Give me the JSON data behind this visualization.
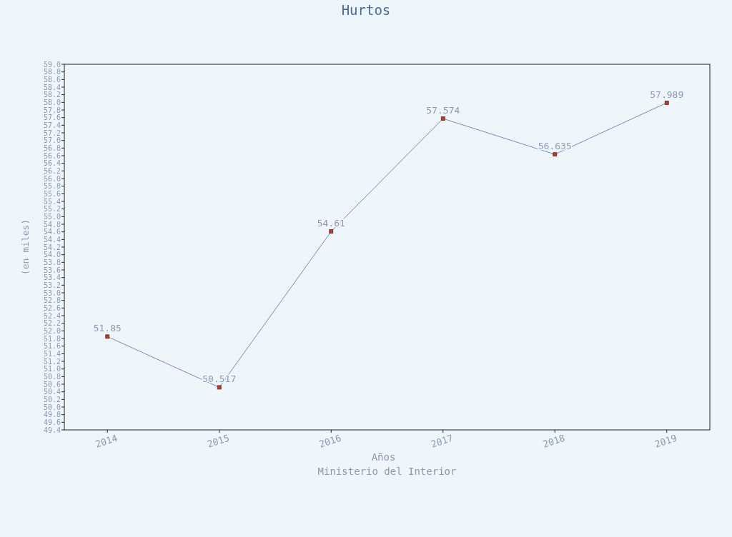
{
  "chart_data": {
    "type": "line",
    "title": "Hurtos",
    "xlabel": "Años",
    "ylabel": "(en miles)",
    "annotations": [
      "Ministerio del Interior"
    ],
    "categories": [
      "2014",
      "2015",
      "2016",
      "2017",
      "2018",
      "2019"
    ],
    "series": [
      {
        "color": "#6f8fb5",
        "values": [
          51.85,
          50.517,
          54.61,
          57.574,
          56.635,
          57.989
        ]
      }
    ],
    "marker": "square",
    "data_labels": true,
    "grid": false,
    "ylim": [
      49.4,
      59.0
    ],
    "yticks": [
      {
        "value": 49.4,
        "label": "49.4"
      },
      {
        "value": 49.6,
        "label": "49.6"
      },
      {
        "value": 49.8,
        "label": "49.8"
      },
      {
        "value": 50,
        "label": "50.0"
      },
      {
        "value": 50.2,
        "label": "50.2"
      },
      {
        "value": 50.4,
        "label": "50.4"
      },
      {
        "value": 50.6,
        "label": "50.6"
      },
      {
        "value": 50.8,
        "label": "50.8"
      },
      {
        "value": 51,
        "label": "51.0"
      },
      {
        "value": 51.2,
        "label": "51.2"
      },
      {
        "value": 51.4,
        "label": "51.4"
      },
      {
        "value": 51.6,
        "label": "51.6"
      },
      {
        "value": 51.8,
        "label": "51.8"
      },
      {
        "value": 52,
        "label": "52.0"
      },
      {
        "value": 52.2,
        "label": "52.2"
      },
      {
        "value": 52.4,
        "label": "52.4"
      },
      {
        "value": 52.6,
        "label": "52.6"
      },
      {
        "value": 52.8,
        "label": "52.8"
      },
      {
        "value": 53,
        "label": "53.0"
      },
      {
        "value": 53.2,
        "label": "53.2"
      },
      {
        "value": 53.4,
        "label": "53.4"
      },
      {
        "value": 53.6,
        "label": "53.6"
      },
      {
        "value": 53.8,
        "label": "53.8"
      },
      {
        "value": 54,
        "label": "54.0"
      },
      {
        "value": 54.2,
        "label": "54.2"
      },
      {
        "value": 54.4,
        "label": "54.4"
      },
      {
        "value": 54.6,
        "label": "54.6"
      },
      {
        "value": 54.8,
        "label": "54.8"
      },
      {
        "value": 55,
        "label": "55.0"
      },
      {
        "value": 55.2,
        "label": "55.2"
      },
      {
        "value": 55.4,
        "label": "55.4"
      },
      {
        "value": 55.6,
        "label": "55.6"
      },
      {
        "value": 55.8,
        "label": "55.8"
      },
      {
        "value": 56,
        "label": "56.0"
      },
      {
        "value": 56.2,
        "label": "56.2"
      },
      {
        "value": 56.4,
        "label": "56.4"
      },
      {
        "value": 56.6,
        "label": "56.6"
      },
      {
        "value": 56.8,
        "label": "56.8"
      },
      {
        "value": 57,
        "label": "57.0"
      },
      {
        "value": 57.2,
        "label": "57.2"
      },
      {
        "value": 57.4,
        "label": "57.4"
      },
      {
        "value": 57.6,
        "label": "57.6"
      },
      {
        "value": 57.8,
        "label": "57.8"
      },
      {
        "value": 58,
        "label": "58.0"
      },
      {
        "value": 58.2,
        "label": "58.2"
      },
      {
        "value": 58.4,
        "label": "58.4"
      },
      {
        "value": 58.6,
        "label": "58.6"
      },
      {
        "value": 58.8,
        "label": "58.8"
      },
      {
        "value": 59,
        "label": "59.0"
      }
    ]
  }
}
